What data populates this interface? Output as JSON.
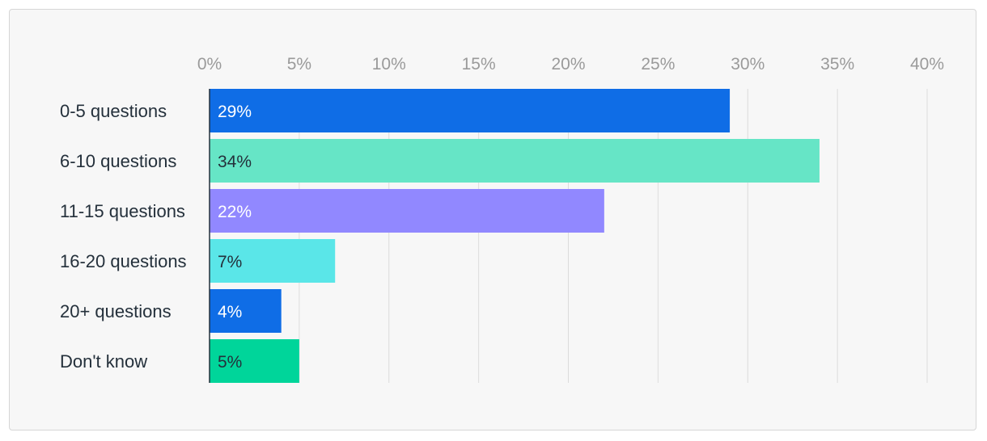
{
  "chart_data": {
    "type": "bar",
    "orientation": "horizontal",
    "categories": [
      "0-5 questions",
      "6-10 questions",
      "11-15 questions",
      "16-20 questions",
      "20+ questions",
      "Don't know"
    ],
    "values": [
      29,
      34,
      22,
      7,
      4,
      5
    ],
    "data_labels": [
      "29%",
      "34%",
      "22%",
      "7%",
      "4%",
      "5%"
    ],
    "bar_colors": [
      "#0f6de6",
      "#66e5c6",
      "#9188ff",
      "#5ae6e8",
      "#0f6de6",
      "#00d59a"
    ],
    "label_colors": [
      "#ffffff",
      "#24303b",
      "#ffffff",
      "#24303b",
      "#ffffff",
      "#24303b"
    ],
    "x_ticks": [
      0,
      5,
      10,
      15,
      20,
      25,
      30,
      35,
      40
    ],
    "x_tick_labels": [
      "0%",
      "5%",
      "10%",
      "15%",
      "20%",
      "25%",
      "30%",
      "35%",
      "40%"
    ],
    "xlim": [
      0,
      40
    ],
    "grid": true,
    "title": "",
    "xlabel": "",
    "ylabel": "",
    "colors": {
      "grid": "#dcdcdc",
      "tick_label": "#9a9a9a",
      "category_label": "#24303b",
      "axis": "#24303b"
    }
  }
}
